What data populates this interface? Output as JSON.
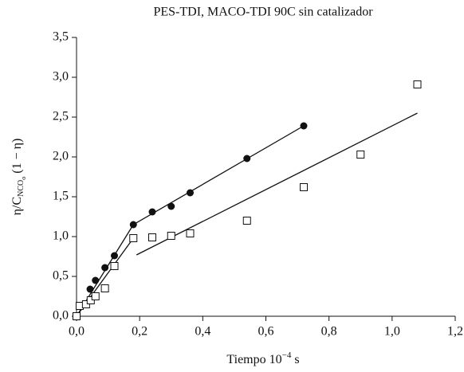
{
  "chart_data": {
    "type": "scatter",
    "title": "PES-TDI, MACO-TDI 90C sin catalizador",
    "xlabel": [
      "Tiempo 10",
      "−4",
      " s"
    ],
    "ylabel": [
      "η/C",
      "NCO",
      "o",
      " (1 − η)"
    ],
    "xlim": [
      0,
      1.2
    ],
    "xticks": [
      {
        "value": 0,
        "label": "0,0"
      },
      {
        "value": 0.2,
        "label": "0,2"
      },
      {
        "value": 0.4,
        "label": "0,4"
      },
      {
        "value": 0.6,
        "label": "0,6"
      },
      {
        "value": 0.8,
        "label": "0,8"
      },
      {
        "value": 1.0,
        "label": "1,0"
      },
      {
        "value": 1.2,
        "label": "1,2"
      }
    ],
    "ylim": [
      0,
      3.5
    ],
    "yticks": [
      {
        "value": 0,
        "label": "0,0"
      },
      {
        "value": 0.5,
        "label": "0,5"
      },
      {
        "value": 1.0,
        "label": "1,0"
      },
      {
        "value": 1.5,
        "label": "1,5"
      },
      {
        "value": 2.0,
        "label": "2,0"
      },
      {
        "value": 2.5,
        "label": "2,5"
      },
      {
        "value": 3.0,
        "label": "3,0"
      },
      {
        "value": 3.5,
        "label": "3,5"
      }
    ],
    "grid": false,
    "series": [
      {
        "marker": "circle",
        "color": "#111111",
        "x": [
          0.043,
          0.06,
          0.09,
          0.12,
          0.18,
          0.24,
          0.3,
          0.36,
          0.54,
          0.72
        ],
        "values": [
          0.34,
          0.45,
          0.61,
          0.76,
          1.15,
          1.31,
          1.38,
          1.55,
          1.98,
          2.39
        ]
      },
      {
        "marker": "square",
        "color": "#111111",
        "x": [
          0,
          0.01,
          0.03,
          0.045,
          0.06,
          0.09,
          0.12,
          0.18,
          0.24,
          0.3,
          0.36,
          0.54,
          0.72,
          0.9,
          1.08
        ],
        "values": [
          0,
          0.13,
          0.15,
          0.2,
          0.25,
          0.35,
          0.63,
          0.98,
          0.99,
          1.01,
          1.04,
          1.2,
          1.62,
          2.03,
          2.91
        ]
      }
    ],
    "fit_lines": [
      {
        "x": [
          0,
          0.18,
          0.72
        ],
        "values": [
          0,
          1.15,
          2.39
        ]
      },
      {
        "x": [
          0,
          0.18
        ],
        "values": [
          0,
          0.98
        ]
      },
      {
        "x": [
          0.19,
          1.08
        ],
        "values": [
          0.77,
          2.55
        ]
      }
    ]
  }
}
